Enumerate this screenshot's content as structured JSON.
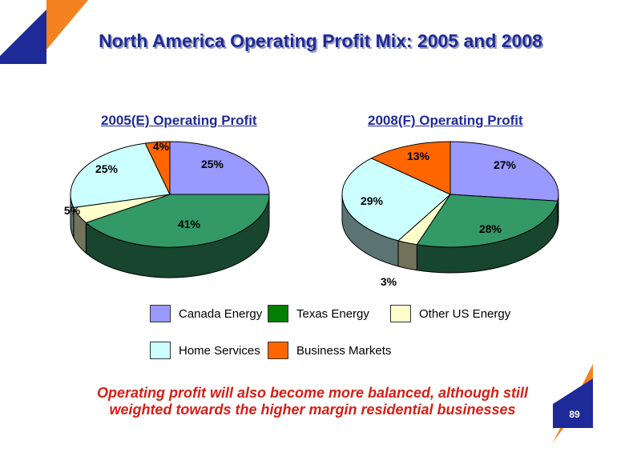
{
  "title": "North America Operating Profit Mix: 2005 and 2008",
  "footer": {
    "line1": "Operating profit will also become more balanced, although still",
    "line2": "weighted towards the higher margin residential businesses"
  },
  "page_number": "89",
  "colors": {
    "canada": "#9999ff",
    "texas": "#339966",
    "other_us": "#ffffcc",
    "home": "#ccffff",
    "business": "#ff6600",
    "title_blue": "#1f2a99",
    "footer_red": "#d71e15",
    "corner_blue": "#1f2a99",
    "corner_orange": "#f58220"
  },
  "legend": [
    {
      "label": "Canada Energy",
      "color": "#9999ff"
    },
    {
      "label": "Texas Energy",
      "color": "#008000"
    },
    {
      "label": "Other US Energy",
      "color": "#ffffcc"
    },
    {
      "label": "Home Services",
      "color": "#ccffff"
    },
    {
      "label": "Business Markets",
      "color": "#ff6600"
    }
  ],
  "chart_data": [
    {
      "type": "pie",
      "title": "2005(E) Operating Profit",
      "categories": [
        "Canada Energy",
        "Texas Energy",
        "Other US Energy",
        "Home Services",
        "Business Markets"
      ],
      "values": [
        25,
        41,
        5,
        25,
        4
      ],
      "labels": [
        "25%",
        "41%",
        "5%",
        "25%",
        "4%"
      ]
    },
    {
      "type": "pie",
      "title": "2008(F) Operating Profit",
      "categories": [
        "Canada Energy",
        "Texas Energy",
        "Other US Energy",
        "Home Services",
        "Business Markets"
      ],
      "values": [
        27,
        28,
        3,
        29,
        13
      ],
      "labels": [
        "27%",
        "28%",
        "3%",
        "29%",
        "13%"
      ]
    }
  ]
}
